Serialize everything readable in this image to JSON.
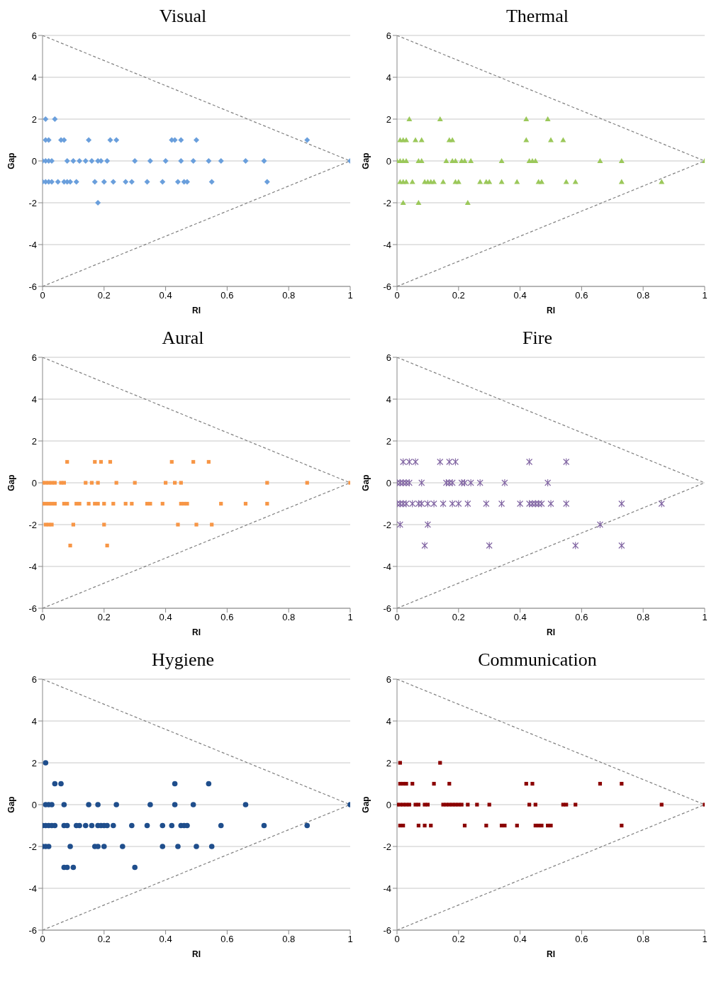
{
  "chart_data": [
    {
      "type": "scatter",
      "title": "Visual",
      "xlabel": "RI",
      "ylabel": "Gap",
      "xlim": [
        0,
        1
      ],
      "xticks": [
        0,
        0.2,
        0.4,
        0.6,
        0.8,
        1
      ],
      "ylim": [
        -6,
        6
      ],
      "yticks": [
        -6,
        -4,
        -2,
        0,
        2,
        4,
        6
      ],
      "grid": "y",
      "marker": "diamond",
      "series": [
        {
          "color": "#6a9fdc",
          "x": [
            0.01,
            0.04,
            0.01,
            0.02,
            0.06,
            0.07,
            0.15,
            0.22,
            0.24,
            0.42,
            0.43,
            0.45,
            0.5,
            0.86,
            0,
            0.01,
            0.02,
            0.03,
            0.08,
            0.1,
            0.12,
            0.14,
            0.16,
            0.18,
            0.19,
            0.21,
            0.3,
            0.35,
            0.4,
            0.45,
            0.49,
            0.54,
            0.58,
            0.66,
            0.72,
            1,
            0,
            0.01,
            0.02,
            0.03,
            0.05,
            0.07,
            0.08,
            0.09,
            0.11,
            0.17,
            0.2,
            0.23,
            0.27,
            0.29,
            0.34,
            0.39,
            0.44,
            0.46,
            0.47,
            0.55,
            0.73,
            0.18
          ],
          "values": [
            2,
            2,
            1,
            1,
            1,
            1,
            1,
            1,
            1,
            1,
            1,
            1,
            1,
            1,
            0,
            0,
            0,
            0,
            0,
            0,
            0,
            0,
            0,
            0,
            0,
            0,
            0,
            0,
            0,
            0,
            0,
            0,
            0,
            0,
            0,
            0,
            -1,
            -1,
            -1,
            -1,
            -1,
            -1,
            -1,
            -1,
            -1,
            -1,
            -1,
            -1,
            -1,
            -1,
            -1,
            -1,
            -1,
            -1,
            -1,
            -1,
            -1,
            -2
          ]
        },
        {
          "type": "line",
          "color": "#808080",
          "line_style": "dashed",
          "marker": "none",
          "x": [
            0,
            1
          ],
          "values": [
            6,
            0
          ]
        },
        {
          "type": "line",
          "color": "#808080",
          "line_style": "dashed",
          "marker": "none",
          "x": [
            0,
            1
          ],
          "values": [
            -6,
            0
          ]
        }
      ]
    },
    {
      "type": "scatter",
      "title": "Thermal",
      "xlabel": "RI",
      "ylabel": "Gap",
      "xlim": [
        0,
        1
      ],
      "xticks": [
        0,
        0.2,
        0.4,
        0.6,
        0.8,
        1
      ],
      "ylim": [
        -6,
        6
      ],
      "yticks": [
        -6,
        -4,
        -2,
        0,
        2,
        4,
        6
      ],
      "grid": "y",
      "marker": "triangle",
      "series": [
        {
          "color": "#9bc85a",
          "x": [
            0.04,
            0.14,
            0.42,
            0.49,
            0.01,
            0.02,
            0.03,
            0.06,
            0.08,
            0.17,
            0.18,
            0.42,
            0.5,
            0.54,
            0,
            0.01,
            0.02,
            0.03,
            0.07,
            0.08,
            0.16,
            0.18,
            0.19,
            0.21,
            0.22,
            0.24,
            0.34,
            0.43,
            0.44,
            0.45,
            0.66,
            0.73,
            1,
            0.01,
            0.02,
            0.03,
            0.05,
            0.09,
            0.1,
            0.11,
            0.12,
            0.15,
            0.19,
            0.2,
            0.27,
            0.29,
            0.3,
            0.34,
            0.39,
            0.46,
            0.47,
            0.55,
            0.58,
            0.73,
            0.86,
            0.02,
            0.07,
            0.23
          ],
          "values": [
            2,
            2,
            2,
            2,
            1,
            1,
            1,
            1,
            1,
            1,
            1,
            1,
            1,
            1,
            0,
            0,
            0,
            0,
            0,
            0,
            0,
            0,
            0,
            0,
            0,
            0,
            0,
            0,
            0,
            0,
            0,
            0,
            0,
            -1,
            -1,
            -1,
            -1,
            -1,
            -1,
            -1,
            -1,
            -1,
            -1,
            -1,
            -1,
            -1,
            -1,
            -1,
            -1,
            -1,
            -1,
            -1,
            -1,
            -1,
            -1,
            -2,
            -2,
            -2
          ]
        },
        {
          "type": "line",
          "color": "#808080",
          "line_style": "dashed",
          "marker": "none",
          "x": [
            0,
            1
          ],
          "values": [
            6,
            0
          ]
        },
        {
          "type": "line",
          "color": "#808080",
          "line_style": "dashed",
          "marker": "none",
          "x": [
            0,
            1
          ],
          "values": [
            -6,
            0
          ]
        }
      ]
    },
    {
      "type": "scatter",
      "title": "Aural",
      "xlabel": "RI",
      "ylabel": "Gap",
      "xlim": [
        0,
        1
      ],
      "xticks": [
        0,
        0.2,
        0.4,
        0.6,
        0.8,
        1
      ],
      "ylim": [
        -6,
        6
      ],
      "yticks": [
        -6,
        -4,
        -2,
        0,
        2,
        4,
        6
      ],
      "grid": "y",
      "marker": "square",
      "series": [
        {
          "color": "#f79646",
          "x": [
            0.08,
            0.17,
            0.19,
            0.22,
            0.42,
            0.49,
            0.54,
            0,
            0.01,
            0.02,
            0.03,
            0.04,
            0.06,
            0.07,
            0.14,
            0.16,
            0.18,
            0.24,
            0.3,
            0.4,
            0.43,
            0.45,
            0.73,
            0.86,
            1,
            0,
            0.01,
            0.02,
            0.03,
            0.04,
            0.07,
            0.08,
            0.11,
            0.12,
            0.15,
            0.17,
            0.18,
            0.2,
            0.23,
            0.27,
            0.29,
            0.34,
            0.35,
            0.39,
            0.45,
            0.46,
            0.47,
            0.58,
            0.66,
            0.73,
            0.01,
            0.02,
            0.03,
            0.1,
            0.2,
            0.44,
            0.5,
            0.55,
            0.09,
            0.21
          ],
          "values": [
            1,
            1,
            1,
            1,
            1,
            1,
            1,
            0,
            0,
            0,
            0,
            0,
            0,
            0,
            0,
            0,
            0,
            0,
            0,
            0,
            0,
            0,
            0,
            0,
            0,
            -1,
            -1,
            -1,
            -1,
            -1,
            -1,
            -1,
            -1,
            -1,
            -1,
            -1,
            -1,
            -1,
            -1,
            -1,
            -1,
            -1,
            -1,
            -1,
            -1,
            -1,
            -1,
            -1,
            -1,
            -1,
            -2,
            -2,
            -2,
            -2,
            -2,
            -2,
            -2,
            -2,
            -3,
            -3
          ]
        },
        {
          "type": "line",
          "color": "#808080",
          "line_style": "dashed",
          "marker": "none",
          "x": [
            0,
            1
          ],
          "values": [
            6,
            0
          ]
        },
        {
          "type": "line",
          "color": "#808080",
          "line_style": "dashed",
          "marker": "none",
          "x": [
            0,
            1
          ],
          "values": [
            -6,
            0
          ]
        }
      ]
    },
    {
      "type": "scatter",
      "title": "Fire",
      "xlabel": "RI",
      "ylabel": "Gap",
      "xlim": [
        0,
        1
      ],
      "xticks": [
        0,
        0.2,
        0.4,
        0.6,
        0.8,
        1
      ],
      "ylim": [
        -6,
        6
      ],
      "yticks": [
        -6,
        -4,
        -2,
        0,
        2,
        4,
        6
      ],
      "grid": "y",
      "marker": "cross",
      "series": [
        {
          "color": "#8064a2",
          "x": [
            0.02,
            0.04,
            0.06,
            0.14,
            0.17,
            0.19,
            0.43,
            0.55,
            0,
            0.01,
            0.02,
            0.03,
            0.04,
            0.08,
            0.16,
            0.17,
            0.18,
            0.21,
            0.22,
            0.24,
            0.27,
            0.35,
            0.49,
            0,
            0.01,
            0.02,
            0.03,
            0.05,
            0.07,
            0.08,
            0.1,
            0.12,
            0.15,
            0.18,
            0.2,
            0.23,
            0.29,
            0.34,
            0.4,
            0.43,
            0.44,
            0.45,
            0.46,
            0.47,
            0.5,
            0.55,
            0.73,
            0.86,
            0.01,
            0.1,
            0.66,
            0.09,
            0.3,
            0.58,
            0.73
          ],
          "values": [
            1,
            1,
            1,
            1,
            1,
            1,
            1,
            1,
            0,
            0,
            0,
            0,
            0,
            0,
            0,
            0,
            0,
            0,
            0,
            0,
            0,
            0,
            0,
            -1,
            -1,
            -1,
            -1,
            -1,
            -1,
            -1,
            -1,
            -1,
            -1,
            -1,
            -1,
            -1,
            -1,
            -1,
            -1,
            -1,
            -1,
            -1,
            -1,
            -1,
            -1,
            -1,
            -1,
            -1,
            -2,
            -2,
            -2,
            -3,
            -3,
            -3,
            -3
          ]
        },
        {
          "type": "line",
          "color": "#808080",
          "line_style": "dashed",
          "marker": "none",
          "x": [
            0,
            1
          ],
          "values": [
            6,
            0
          ]
        },
        {
          "type": "line",
          "color": "#808080",
          "line_style": "dashed",
          "marker": "none",
          "x": [
            0,
            1
          ],
          "values": [
            -6,
            0
          ]
        }
      ]
    },
    {
      "type": "scatter",
      "title": "Hygiene",
      "xlabel": "RI",
      "ylabel": "Gap",
      "xlim": [
        0,
        1
      ],
      "xticks": [
        0,
        0.2,
        0.4,
        0.6,
        0.8,
        1
      ],
      "ylim": [
        -6,
        6
      ],
      "yticks": [
        -6,
        -4,
        -2,
        0,
        2,
        4,
        6
      ],
      "grid": "y",
      "marker": "circle",
      "series": [
        {
          "color": "#1f4e8c",
          "x": [
            0.01,
            0.04,
            0.06,
            0.43,
            0.54,
            0.01,
            0.02,
            0.03,
            0.07,
            0.15,
            0.18,
            0.24,
            0.35,
            0.43,
            0.49,
            0.66,
            1,
            0,
            0.01,
            0.02,
            0.03,
            0.04,
            0.07,
            0.08,
            0.11,
            0.12,
            0.14,
            0.16,
            0.18,
            0.19,
            0.2,
            0.21,
            0.23,
            0.29,
            0.34,
            0.39,
            0.42,
            0.45,
            0.46,
            0.47,
            0.58,
            0.72,
            0.86,
            0,
            0.01,
            0.02,
            0.09,
            0.17,
            0.18,
            0.2,
            0.26,
            0.39,
            0.44,
            0.5,
            0.55,
            0.07,
            0.08,
            0.1,
            0.3
          ],
          "values": [
            2,
            1,
            1,
            1,
            1,
            0,
            0,
            0,
            0,
            0,
            0,
            0,
            0,
            0,
            0,
            0,
            0,
            -1,
            -1,
            -1,
            -1,
            -1,
            -1,
            -1,
            -1,
            -1,
            -1,
            -1,
            -1,
            -1,
            -1,
            -1,
            -1,
            -1,
            -1,
            -1,
            -1,
            -1,
            -1,
            -1,
            -1,
            -1,
            -1,
            -2,
            -2,
            -2,
            -2,
            -2,
            -2,
            -2,
            -2,
            -2,
            -2,
            -2,
            -2,
            -3,
            -3,
            -3,
            -3
          ]
        },
        {
          "type": "line",
          "color": "#808080",
          "line_style": "dashed",
          "marker": "none",
          "x": [
            0,
            1
          ],
          "values": [
            6,
            0
          ]
        },
        {
          "type": "line",
          "color": "#808080",
          "line_style": "dashed",
          "marker": "none",
          "x": [
            0,
            1
          ],
          "values": [
            -6,
            0
          ]
        }
      ]
    },
    {
      "type": "scatter",
      "title": "Communication",
      "xlabel": "RI",
      "ylabel": "Gap",
      "xlim": [
        0,
        1
      ],
      "xticks": [
        0,
        0.2,
        0.4,
        0.6,
        0.8,
        1
      ],
      "ylim": [
        -6,
        6
      ],
      "yticks": [
        -6,
        -4,
        -2,
        0,
        2,
        4,
        6
      ],
      "grid": "y",
      "marker": "square",
      "series": [
        {
          "color": "#8b0000",
          "x": [
            0.01,
            0.14,
            0.01,
            0.02,
            0.03,
            0.05,
            0.12,
            0.17,
            0.42,
            0.44,
            0.66,
            0.73,
            0,
            0.01,
            0.02,
            0.03,
            0.04,
            0.06,
            0.07,
            0.09,
            0.1,
            0.15,
            0.16,
            0.17,
            0.18,
            0.19,
            0.2,
            0.21,
            0.23,
            0.26,
            0.3,
            0.43,
            0.45,
            0.54,
            0.55,
            0.58,
            0.86,
            1,
            0.01,
            0.02,
            0.07,
            0.09,
            0.11,
            0.22,
            0.29,
            0.34,
            0.35,
            0.39,
            0.45,
            0.46,
            0.47,
            0.49,
            0.5,
            0.73
          ],
          "values": [
            2,
            2,
            1,
            1,
            1,
            1,
            1,
            1,
            1,
            1,
            1,
            1,
            0,
            0,
            0,
            0,
            0,
            0,
            0,
            0,
            0,
            0,
            0,
            0,
            0,
            0,
            0,
            0,
            0,
            0,
            0,
            0,
            0,
            0,
            0,
            0,
            0,
            0,
            -1,
            -1,
            -1,
            -1,
            -1,
            -1,
            -1,
            -1,
            -1,
            -1,
            -1,
            -1,
            -1,
            -1,
            -1,
            -1
          ]
        },
        {
          "type": "line",
          "color": "#808080",
          "line_style": "dashed",
          "marker": "none",
          "x": [
            0,
            1
          ],
          "values": [
            6,
            0
          ]
        },
        {
          "type": "line",
          "color": "#808080",
          "line_style": "dashed",
          "marker": "none",
          "x": [
            0,
            1
          ],
          "values": [
            -6,
            0
          ]
        }
      ]
    }
  ]
}
